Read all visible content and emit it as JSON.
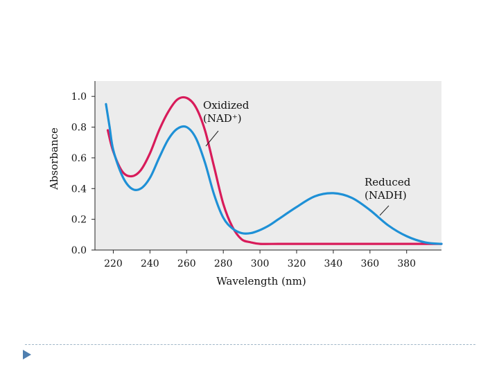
{
  "chart_data": {
    "type": "line",
    "title": "",
    "xlabel": "Wavelength (nm)",
    "ylabel": "Absorbance",
    "xlim": [
      215,
      400
    ],
    "ylim": [
      0,
      1.1
    ],
    "x_ticks": [
      220,
      240,
      260,
      280,
      300,
      320,
      340,
      360,
      380
    ],
    "y_ticks": [
      0.0,
      0.2,
      0.4,
      0.6,
      0.8,
      1.0
    ],
    "x_tick_labels": [
      "220",
      "240",
      "260",
      "280",
      "300",
      "320",
      "340",
      "360",
      "380"
    ],
    "y_tick_labels": [
      "0.0",
      "0.2",
      "0.4",
      "0.6",
      "0.8",
      "1.0"
    ],
    "series": [
      {
        "color": "#d81b5a",
        "x": [
          217,
          220,
          225,
          230,
          235,
          240,
          245,
          250,
          255,
          260,
          265,
          270,
          275,
          280,
          285,
          290,
          295,
          300,
          310,
          320,
          340,
          360,
          380,
          400
        ],
        "y": [
          0.78,
          0.64,
          0.51,
          0.48,
          0.52,
          0.63,
          0.78,
          0.9,
          0.98,
          0.99,
          0.93,
          0.78,
          0.54,
          0.3,
          0.15,
          0.07,
          0.05,
          0.04,
          0.04,
          0.04,
          0.04,
          0.04,
          0.04,
          0.04
        ]
      },
      {
        "color": "#1e90d6",
        "x": [
          216,
          218,
          220,
          225,
          230,
          235,
          240,
          245,
          250,
          255,
          260,
          265,
          270,
          275,
          280,
          285,
          290,
          295,
          300,
          305,
          310,
          320,
          330,
          340,
          350,
          360,
          370,
          380,
          390,
          400
        ],
        "y": [
          0.95,
          0.8,
          0.65,
          0.48,
          0.4,
          0.4,
          0.47,
          0.6,
          0.72,
          0.79,
          0.8,
          0.73,
          0.57,
          0.36,
          0.21,
          0.14,
          0.11,
          0.11,
          0.13,
          0.16,
          0.2,
          0.28,
          0.35,
          0.37,
          0.34,
          0.26,
          0.16,
          0.09,
          0.05,
          0.04
        ]
      }
    ],
    "annotations": [
      {
        "lines": [
          "Oxidized",
          "(NAD⁺)"
        ]
      },
      {
        "lines": [
          "Reduced",
          "(NADH)"
        ]
      }
    ],
    "grid": false
  }
}
